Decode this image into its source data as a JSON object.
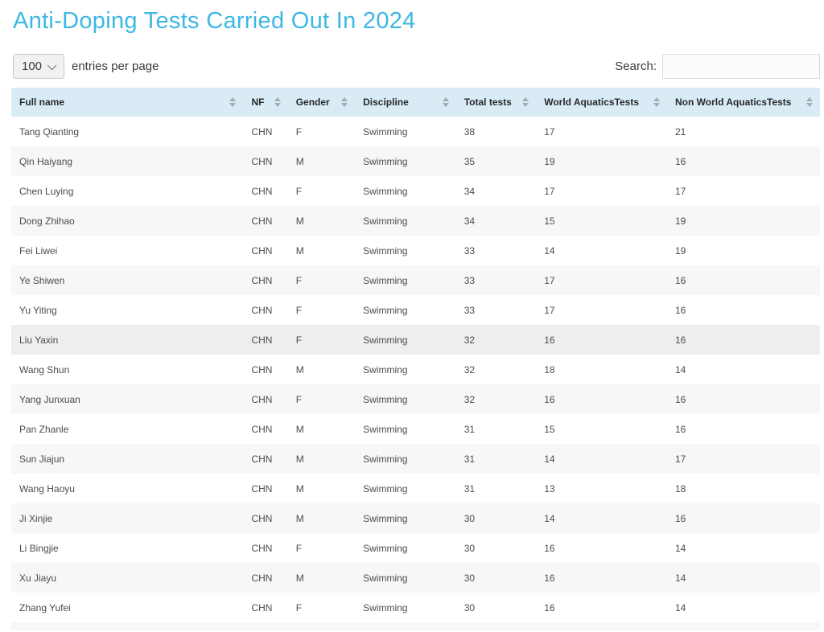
{
  "page": {
    "title": "Anti-Doping Tests Carried Out In 2024"
  },
  "controls": {
    "page_length": {
      "selected": "100",
      "label": "entries per page",
      "icon": "chevron-down-icon"
    },
    "search": {
      "label": "Search:",
      "value": "",
      "placeholder": ""
    }
  },
  "table": {
    "columns": [
      {
        "label": "Full name",
        "sort_icon": "sort-arrows-icon"
      },
      {
        "label": "NF",
        "sort_icon": "sort-arrows-icon"
      },
      {
        "label": "Gender",
        "sort_icon": "sort-arrows-icon"
      },
      {
        "label": "Discipline",
        "sort_icon": "sort-arrows-icon"
      },
      {
        "label": "Total tests",
        "sort_icon": "sort-arrows-icon"
      },
      {
        "label": "World AquaticsTests",
        "sort_icon": "sort-arrows-icon"
      },
      {
        "label": "Non World AquaticsTests",
        "sort_icon": "sort-arrows-icon"
      }
    ],
    "column_keys": [
      "full-name",
      "nf",
      "gender",
      "discipline",
      "total-tests",
      "world-aquatics-tests",
      "non-world-aquatics-tests"
    ],
    "rows": [
      [
        "Tang Qianting",
        "CHN",
        "F",
        "Swimming",
        38,
        17,
        21
      ],
      [
        "Qin Haiyang",
        "CHN",
        "M",
        "Swimming",
        35,
        19,
        16
      ],
      [
        "Chen Luying",
        "CHN",
        "F",
        "Swimming",
        34,
        17,
        17
      ],
      [
        "Dong Zhihao",
        "CHN",
        "M",
        "Swimming",
        34,
        15,
        19
      ],
      [
        "Fei Liwei",
        "CHN",
        "M",
        "Swimming",
        33,
        14,
        19
      ],
      [
        "Ye Shiwen",
        "CHN",
        "F",
        "Swimming",
        33,
        17,
        16
      ],
      [
        "Yu Yiting",
        "CHN",
        "F",
        "Swimming",
        33,
        17,
        16
      ],
      [
        "Liu Yaxin",
        "CHN",
        "F",
        "Swimming",
        32,
        16,
        16
      ],
      [
        "Wang Shun",
        "CHN",
        "M",
        "Swimming",
        32,
        18,
        14
      ],
      [
        "Yang Junxuan",
        "CHN",
        "F",
        "Swimming",
        32,
        16,
        16
      ],
      [
        "Pan Zhanle",
        "CHN",
        "M",
        "Swimming",
        31,
        15,
        16
      ],
      [
        "Sun Jiajun",
        "CHN",
        "M",
        "Swimming",
        31,
        14,
        17
      ],
      [
        "Wang Haoyu",
        "CHN",
        "M",
        "Swimming",
        31,
        13,
        18
      ],
      [
        "Ji Xinjie",
        "CHN",
        "M",
        "Swimming",
        30,
        14,
        16
      ],
      [
        "Li Bingjie",
        "CHN",
        "F",
        "Swimming",
        30,
        16,
        14
      ],
      [
        "Xu Jiayu",
        "CHN",
        "M",
        "Swimming",
        30,
        16,
        14
      ],
      [
        "Zhang Yufei",
        "CHN",
        "F",
        "Swimming",
        30,
        16,
        14
      ]
    ],
    "highlighted_row_index": 7
  },
  "colors": {
    "title": "#3db7e4",
    "header_bg": "#d9ecf5",
    "row_alt_bg": "#f7f7f8",
    "row_hover_bg": "#eeeeee",
    "cell_text": "#494c4e",
    "sort_arrow": "#a3abb3"
  }
}
